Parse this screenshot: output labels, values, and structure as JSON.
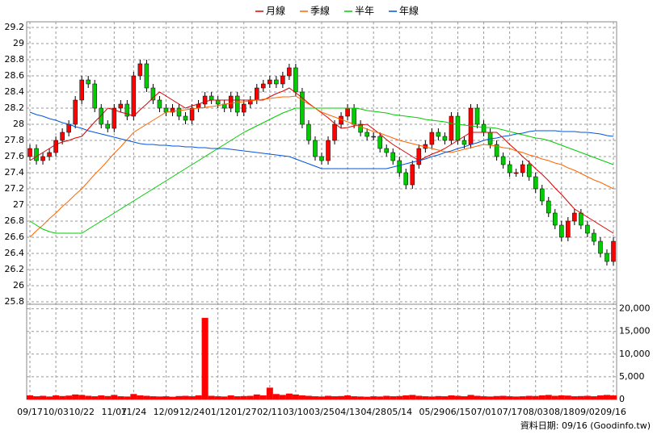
{
  "chart_data": {
    "type": "candlestick",
    "categories": [
      "09/17",
      null,
      null,
      null,
      "10/03",
      null,
      null,
      null,
      "10/22",
      null,
      null,
      null,
      null,
      "11/07",
      null,
      null,
      "11/24",
      null,
      null,
      null,
      null,
      "12/09",
      null,
      null,
      null,
      "12/24",
      null,
      null,
      null,
      "01/12",
      null,
      null,
      null,
      "01/27",
      null,
      null,
      null,
      "02/11",
      null,
      null,
      null,
      "03/10",
      null,
      null,
      null,
      "03/25",
      null,
      null,
      null,
      "04/13",
      null,
      null,
      null,
      "04/28",
      null,
      null,
      null,
      "05/14",
      null,
      null,
      null,
      null,
      "05/29",
      null,
      null,
      null,
      "06/15",
      null,
      null,
      null,
      "07/01",
      null,
      null,
      null,
      "07/17",
      null,
      null,
      null,
      "08/03",
      null,
      null,
      null,
      "08/18",
      null,
      null,
      null,
      "09/02",
      null,
      null,
      null,
      "09/16"
    ],
    "open": [
      27.6,
      27.7,
      27.55,
      27.6,
      27.65,
      27.8,
      27.9,
      28.0,
      28.3,
      28.55,
      28.5,
      28.2,
      28.0,
      27.95,
      28.2,
      28.25,
      28.1,
      28.6,
      28.75,
      28.45,
      28.3,
      28.2,
      28.15,
      28.2,
      28.1,
      28.05,
      28.2,
      28.25,
      28.35,
      28.3,
      28.25,
      28.2,
      28.35,
      28.15,
      28.25,
      28.3,
      28.45,
      28.5,
      28.55,
      28.5,
      28.6,
      28.7,
      28.4,
      28.0,
      27.8,
      27.6,
      27.55,
      27.8,
      28.0,
      28.1,
      28.2,
      28.0,
      27.9,
      27.85,
      27.85,
      27.7,
      27.65,
      27.55,
      27.4,
      27.25,
      27.5,
      27.7,
      27.75,
      27.9,
      27.85,
      27.8,
      28.1,
      27.8,
      27.75,
      28.2,
      28.0,
      27.9,
      27.75,
      27.6,
      27.5,
      27.4,
      27.4,
      27.5,
      27.35,
      27.2,
      27.05,
      26.9,
      26.75,
      26.6,
      26.8,
      26.9,
      26.75,
      26.65,
      26.55,
      26.4,
      26.3
    ],
    "close": [
      27.7,
      27.55,
      27.6,
      27.65,
      27.8,
      27.9,
      28.0,
      28.3,
      28.55,
      28.5,
      28.2,
      28.0,
      27.95,
      28.2,
      28.25,
      28.1,
      28.6,
      28.75,
      28.45,
      28.3,
      28.2,
      28.15,
      28.2,
      28.1,
      28.05,
      28.2,
      28.25,
      28.35,
      28.3,
      28.25,
      28.2,
      28.35,
      28.15,
      28.25,
      28.3,
      28.45,
      28.5,
      28.55,
      28.5,
      28.6,
      28.7,
      28.4,
      28.0,
      27.8,
      27.6,
      27.55,
      27.8,
      28.0,
      28.1,
      28.2,
      28.0,
      27.9,
      27.85,
      27.85,
      27.7,
      27.65,
      27.55,
      27.4,
      27.25,
      27.5,
      27.7,
      27.75,
      27.9,
      27.85,
      27.8,
      28.1,
      27.8,
      27.75,
      28.2,
      28.0,
      27.9,
      27.75,
      27.6,
      27.5,
      27.4,
      27.4,
      27.5,
      27.35,
      27.2,
      27.05,
      26.9,
      26.75,
      26.6,
      26.8,
      26.9,
      26.75,
      26.65,
      26.55,
      26.4,
      26.3,
      26.55
    ],
    "high": [
      27.75,
      27.75,
      27.65,
      27.7,
      27.85,
      27.95,
      28.05,
      28.35,
      28.6,
      28.6,
      28.55,
      28.25,
      28.05,
      28.25,
      28.3,
      28.3,
      28.65,
      28.8,
      28.8,
      28.5,
      28.35,
      28.25,
      28.25,
      28.25,
      28.15,
      28.25,
      28.3,
      28.4,
      28.4,
      28.35,
      28.3,
      28.4,
      28.4,
      28.3,
      28.35,
      28.5,
      28.55,
      28.6,
      28.6,
      28.65,
      28.75,
      28.75,
      28.45,
      28.05,
      27.85,
      27.65,
      27.85,
      28.05,
      28.15,
      28.25,
      28.25,
      28.05,
      27.95,
      27.9,
      27.9,
      27.75,
      27.7,
      27.6,
      27.45,
      27.55,
      27.75,
      27.8,
      27.95,
      27.95,
      27.9,
      28.15,
      28.15,
      27.85,
      28.25,
      28.25,
      28.05,
      27.95,
      27.8,
      27.65,
      27.55,
      27.45,
      27.55,
      27.55,
      27.4,
      27.25,
      27.1,
      26.95,
      26.8,
      26.85,
      26.95,
      26.95,
      26.8,
      26.7,
      26.6,
      26.45,
      26.6
    ],
    "low": [
      27.55,
      27.5,
      27.5,
      27.55,
      27.6,
      27.75,
      27.85,
      27.95,
      28.25,
      28.45,
      28.15,
      27.95,
      27.9,
      27.9,
      28.15,
      28.05,
      28.05,
      28.55,
      28.4,
      28.25,
      28.15,
      28.1,
      28.1,
      28.05,
      28.0,
      28.0,
      28.15,
      28.2,
      28.25,
      28.2,
      28.15,
      28.15,
      28.1,
      28.1,
      28.2,
      28.25,
      28.4,
      28.45,
      28.45,
      28.45,
      28.55,
      28.35,
      27.95,
      27.75,
      27.55,
      27.5,
      27.5,
      27.75,
      27.95,
      28.05,
      27.95,
      27.85,
      27.8,
      27.8,
      27.65,
      27.6,
      27.5,
      27.35,
      27.2,
      27.2,
      27.45,
      27.65,
      27.7,
      27.8,
      27.75,
      27.75,
      27.75,
      27.7,
      27.7,
      27.95,
      27.85,
      27.7,
      27.55,
      27.45,
      27.35,
      27.35,
      27.35,
      27.3,
      27.15,
      27.0,
      26.85,
      26.7,
      26.55,
      26.55,
      26.75,
      26.7,
      26.6,
      26.5,
      26.35,
      26.25,
      26.25
    ],
    "up_color": "#ff0000",
    "down_color": "#00cc00",
    "series": [
      {
        "name": "月線",
        "color": "#dd0000",
        "values": [
          27.55,
          27.6,
          27.65,
          27.7,
          27.75,
          27.78,
          27.8,
          27.83,
          27.85,
          27.94,
          28.03,
          28.11,
          28.2,
          28.18,
          28.15,
          28.13,
          28.1,
          28.18,
          28.25,
          28.33,
          28.4,
          28.35,
          28.3,
          28.25,
          28.2,
          28.23,
          28.25,
          28.28,
          28.3,
          28.3,
          28.3,
          28.3,
          28.3,
          28.3,
          28.3,
          28.3,
          28.3,
          28.34,
          28.38,
          28.41,
          28.45,
          28.39,
          28.33,
          28.26,
          28.2,
          28.14,
          28.08,
          28.01,
          27.95,
          27.96,
          27.98,
          27.99,
          28.0,
          27.94,
          27.88,
          27.81,
          27.75,
          27.7,
          27.65,
          27.6,
          27.55,
          27.59,
          27.63,
          27.66,
          27.7,
          27.75,
          27.8,
          27.85,
          27.9,
          27.9,
          27.9,
          27.9,
          27.9,
          27.83,
          27.75,
          27.68,
          27.6,
          27.53,
          27.45,
          27.38,
          27.3,
          27.21,
          27.13,
          27.04,
          26.95,
          26.9,
          26.85,
          26.8,
          26.75,
          26.7,
          26.65
        ]
      },
      {
        "name": "季線",
        "color": "#ff6600",
        "values": [
          26.6,
          26.68,
          26.75,
          26.83,
          26.9,
          26.98,
          27.05,
          27.13,
          27.2,
          27.29,
          27.38,
          27.46,
          27.55,
          27.64,
          27.72,
          27.81,
          27.9,
          27.95,
          28.0,
          28.05,
          28.1,
          28.15,
          28.16,
          28.17,
          28.18,
          28.19,
          28.2,
          28.21,
          28.22,
          28.23,
          28.25,
          28.26,
          28.27,
          28.28,
          28.29,
          28.3,
          28.31,
          28.32,
          28.33,
          28.34,
          28.34,
          28.35,
          28.3,
          28.25,
          28.2,
          28.15,
          28.12,
          28.09,
          28.06,
          28.03,
          28.0,
          27.97,
          27.94,
          27.91,
          27.89,
          27.86,
          27.83,
          27.8,
          27.78,
          27.76,
          27.74,
          27.72,
          27.7,
          27.68,
          27.66,
          27.65,
          27.67,
          27.69,
          27.71,
          27.73,
          27.75,
          27.74,
          27.73,
          27.71,
          27.7,
          27.67,
          27.65,
          27.62,
          27.6,
          27.57,
          27.55,
          27.52,
          27.5,
          27.46,
          27.43,
          27.39,
          27.35,
          27.31,
          27.28,
          27.24,
          27.2
        ]
      },
      {
        "name": "半年",
        "color": "#00cc00",
        "values": [
          26.8,
          26.75,
          26.7,
          26.67,
          26.65,
          26.65,
          26.65,
          26.65,
          26.65,
          26.7,
          26.75,
          26.8,
          26.85,
          26.9,
          26.95,
          27.0,
          27.05,
          27.1,
          27.15,
          27.2,
          27.25,
          27.3,
          27.35,
          27.4,
          27.45,
          27.5,
          27.55,
          27.6,
          27.65,
          27.7,
          27.75,
          27.8,
          27.85,
          27.9,
          27.94,
          27.98,
          28.02,
          28.06,
          28.1,
          28.14,
          28.17,
          28.2,
          28.2,
          28.2,
          28.2,
          28.2,
          28.2,
          28.2,
          28.2,
          28.2,
          28.2,
          28.19,
          28.17,
          28.16,
          28.15,
          28.14,
          28.12,
          28.11,
          28.1,
          28.09,
          28.08,
          28.06,
          28.05,
          28.04,
          28.03,
          28.01,
          28.0,
          27.99,
          27.98,
          27.97,
          27.96,
          27.96,
          27.95,
          27.93,
          27.91,
          27.89,
          27.87,
          27.85,
          27.83,
          27.82,
          27.8,
          27.77,
          27.74,
          27.71,
          27.68,
          27.65,
          27.62,
          27.59,
          27.56,
          27.53,
          27.5
        ]
      },
      {
        "name": "年線",
        "color": "#0055dd",
        "values": [
          28.15,
          28.12,
          28.1,
          28.07,
          28.05,
          28.02,
          28.0,
          27.97,
          27.95,
          27.92,
          27.9,
          27.88,
          27.86,
          27.84,
          27.82,
          27.8,
          27.78,
          27.76,
          27.75,
          27.75,
          27.74,
          27.74,
          27.73,
          27.73,
          27.72,
          27.72,
          27.71,
          27.71,
          27.7,
          27.7,
          27.7,
          27.69,
          27.68,
          27.67,
          27.66,
          27.65,
          27.64,
          27.63,
          27.62,
          27.61,
          27.6,
          27.57,
          27.54,
          27.51,
          27.48,
          27.45,
          27.45,
          27.45,
          27.45,
          27.45,
          27.45,
          27.45,
          27.45,
          27.45,
          27.45,
          27.45,
          27.47,
          27.49,
          27.51,
          27.53,
          27.55,
          27.57,
          27.6,
          27.62,
          27.65,
          27.67,
          27.7,
          27.72,
          27.75,
          27.77,
          27.8,
          27.82,
          27.83,
          27.85,
          27.86,
          27.88,
          27.89,
          27.91,
          27.92,
          27.92,
          27.92,
          27.92,
          27.91,
          27.91,
          27.91,
          27.9,
          27.9,
          27.89,
          27.88,
          27.86,
          27.85
        ]
      }
    ],
    "volume": {
      "color": "#ff0000",
      "axis": "y2",
      "values": [
        900,
        700,
        800,
        650,
        900,
        750,
        850,
        1100,
        1000,
        800,
        700,
        900,
        750,
        1000,
        700,
        650,
        1200,
        900,
        800,
        700,
        650,
        700,
        600,
        750,
        800,
        700,
        900,
        18000,
        800,
        700,
        650,
        900,
        700,
        750,
        800,
        1100,
        900,
        2600,
        1200,
        1000,
        1300,
        1100,
        900,
        800,
        700,
        650,
        800,
        700,
        750,
        900,
        700,
        650,
        600,
        700,
        650,
        800,
        700,
        750,
        900,
        1000,
        800,
        700,
        650,
        750,
        700,
        900,
        800,
        700,
        1000,
        800,
        700,
        650,
        750,
        800,
        700,
        650,
        700,
        800,
        750,
        900,
        1000,
        800,
        900,
        850,
        700,
        750,
        800,
        700,
        900,
        1000,
        900
      ]
    },
    "ylim": [
      25.77,
      29.27
    ],
    "yticks": [
      25.8,
      26,
      26.2,
      26.4,
      26.6,
      26.8,
      27,
      27.2,
      27.4,
      27.6,
      27.8,
      28,
      28.2,
      28.4,
      28.6,
      28.8,
      29,
      29.2
    ],
    "y2lim": [
      0,
      21000
    ],
    "y2ticks": [
      0,
      {
        "value": 5000,
        "label": "5,000"
      },
      {
        "value": 10000,
        "label": "10,000"
      },
      {
        "value": 15000,
        "label": "15,000"
      },
      {
        "value": 20000,
        "label": "20,000"
      }
    ],
    "grid": true,
    "footer": "資料日期: 09/16 (Goodinfo.tw)"
  }
}
